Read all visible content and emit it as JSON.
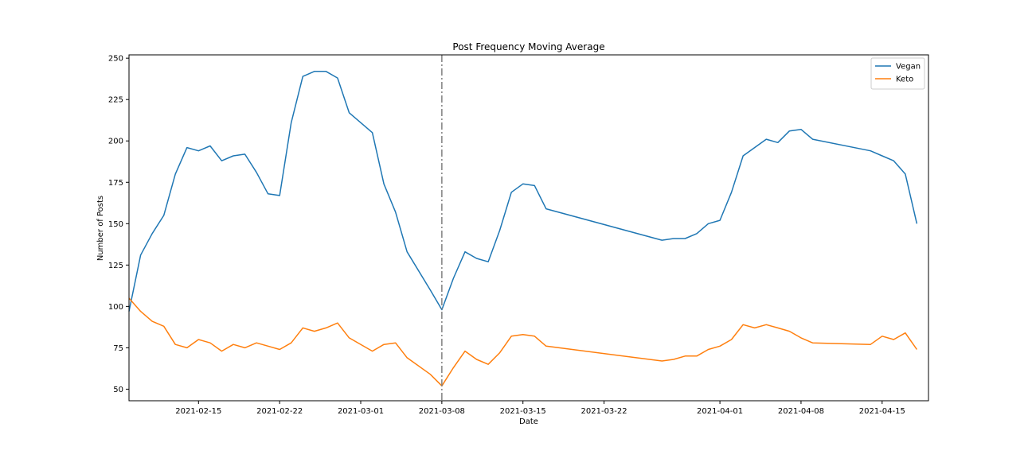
{
  "chart_data": {
    "type": "line",
    "title": "Post Frequency Moving Average",
    "xlabel": "Date",
    "ylabel": "Number of Posts",
    "xlim": [
      "2021-02-09",
      "2021-04-19"
    ],
    "ylim": [
      43,
      252
    ],
    "x_ticks": [
      "2021-02-15",
      "2021-02-22",
      "2021-03-01",
      "2021-03-08",
      "2021-03-15",
      "2021-03-22",
      "2021-04-01",
      "2021-04-08",
      "2021-04-15"
    ],
    "y_ticks": [
      50,
      75,
      100,
      125,
      150,
      175,
      200,
      225,
      250
    ],
    "grid": false,
    "legend_position": "top-right",
    "vline": {
      "x": "2021-03-08",
      "color": "#808080",
      "style": "dash-dot"
    },
    "series": [
      {
        "name": "Vegan",
        "color": "#1f77b4",
        "points": [
          [
            "2021-02-09",
            97
          ],
          [
            "2021-02-10",
            131
          ],
          [
            "2021-02-11",
            144
          ],
          [
            "2021-02-12",
            155
          ],
          [
            "2021-02-13",
            180
          ],
          [
            "2021-02-14",
            196
          ],
          [
            "2021-02-15",
            194
          ],
          [
            "2021-02-16",
            197
          ],
          [
            "2021-02-17",
            188
          ],
          [
            "2021-02-18",
            191
          ],
          [
            "2021-02-19",
            192
          ],
          [
            "2021-02-20",
            181
          ],
          [
            "2021-02-21",
            168
          ],
          [
            "2021-02-22",
            167
          ],
          [
            "2021-02-23",
            211
          ],
          [
            "2021-02-24",
            239
          ],
          [
            "2021-02-25",
            242
          ],
          [
            "2021-02-26",
            242
          ],
          [
            "2021-02-27",
            238
          ],
          [
            "2021-02-28",
            217
          ],
          [
            "2021-03-02",
            205
          ],
          [
            "2021-03-03",
            174
          ],
          [
            "2021-03-04",
            157
          ],
          [
            "2021-03-05",
            133
          ],
          [
            "2021-03-07",
            110
          ],
          [
            "2021-03-08",
            98
          ],
          [
            "2021-03-09",
            117
          ],
          [
            "2021-03-10",
            133
          ],
          [
            "2021-03-11",
            129
          ],
          [
            "2021-03-12",
            127
          ],
          [
            "2021-03-13",
            146
          ],
          [
            "2021-03-14",
            169
          ],
          [
            "2021-03-15",
            174
          ],
          [
            "2021-03-16",
            173
          ],
          [
            "2021-03-17",
            159
          ],
          [
            "2021-03-27",
            140
          ],
          [
            "2021-03-28",
            141
          ],
          [
            "2021-03-29",
            141
          ],
          [
            "2021-03-30",
            144
          ],
          [
            "2021-03-31",
            150
          ],
          [
            "2021-04-01",
            152
          ],
          [
            "2021-04-02",
            169
          ],
          [
            "2021-04-03",
            191
          ],
          [
            "2021-04-05",
            201
          ],
          [
            "2021-04-06",
            199
          ],
          [
            "2021-04-07",
            206
          ],
          [
            "2021-04-08",
            207
          ],
          [
            "2021-04-09",
            201
          ],
          [
            "2021-04-14",
            194
          ],
          [
            "2021-04-15",
            191
          ],
          [
            "2021-04-16",
            188
          ],
          [
            "2021-04-17",
            180
          ],
          [
            "2021-04-18",
            150
          ]
        ]
      },
      {
        "name": "Keto",
        "color": "#ff7f0e",
        "points": [
          [
            "2021-02-09",
            105
          ],
          [
            "2021-02-10",
            97
          ],
          [
            "2021-02-11",
            91
          ],
          [
            "2021-02-12",
            88
          ],
          [
            "2021-02-13",
            77
          ],
          [
            "2021-02-14",
            75
          ],
          [
            "2021-02-15",
            80
          ],
          [
            "2021-02-16",
            78
          ],
          [
            "2021-02-17",
            73
          ],
          [
            "2021-02-18",
            77
          ],
          [
            "2021-02-19",
            75
          ],
          [
            "2021-02-20",
            78
          ],
          [
            "2021-02-21",
            76
          ],
          [
            "2021-02-22",
            74
          ],
          [
            "2021-02-23",
            78
          ],
          [
            "2021-02-24",
            87
          ],
          [
            "2021-02-25",
            85
          ],
          [
            "2021-02-26",
            87
          ],
          [
            "2021-02-27",
            90
          ],
          [
            "2021-02-28",
            81
          ],
          [
            "2021-03-02",
            73
          ],
          [
            "2021-03-03",
            77
          ],
          [
            "2021-03-04",
            78
          ],
          [
            "2021-03-05",
            69
          ],
          [
            "2021-03-07",
            59
          ],
          [
            "2021-03-08",
            52
          ],
          [
            "2021-03-09",
            63
          ],
          [
            "2021-03-10",
            73
          ],
          [
            "2021-03-11",
            68
          ],
          [
            "2021-03-12",
            65
          ],
          [
            "2021-03-13",
            72
          ],
          [
            "2021-03-14",
            82
          ],
          [
            "2021-03-15",
            83
          ],
          [
            "2021-03-16",
            82
          ],
          [
            "2021-03-17",
            76
          ],
          [
            "2021-03-27",
            67
          ],
          [
            "2021-03-28",
            68
          ],
          [
            "2021-03-29",
            70
          ],
          [
            "2021-03-30",
            70
          ],
          [
            "2021-03-31",
            74
          ],
          [
            "2021-04-01",
            76
          ],
          [
            "2021-04-02",
            80
          ],
          [
            "2021-04-03",
            89
          ],
          [
            "2021-04-04",
            87
          ],
          [
            "2021-04-05",
            89
          ],
          [
            "2021-04-06",
            87
          ],
          [
            "2021-04-07",
            85
          ],
          [
            "2021-04-08",
            81
          ],
          [
            "2021-04-09",
            78
          ],
          [
            "2021-04-14",
            77
          ],
          [
            "2021-04-15",
            82
          ],
          [
            "2021-04-16",
            80
          ],
          [
            "2021-04-17",
            84
          ],
          [
            "2021-04-18",
            74
          ]
        ]
      }
    ]
  }
}
